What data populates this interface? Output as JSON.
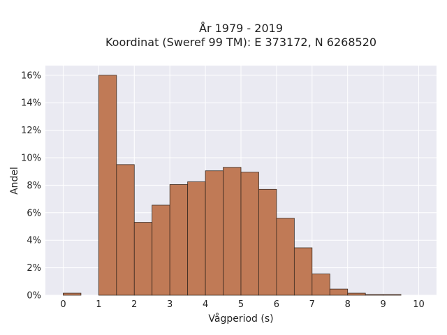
{
  "chart_data": {
    "type": "bar",
    "title": "År 1979 - 2019",
    "subtitle": "Koordinat (Sweref 99 TM): E 373172, N 6268520",
    "xlabel": "Vågperiod (s)",
    "ylabel": "Andel",
    "xlim": [
      -0.5,
      10.5
    ],
    "ylim": [
      0,
      16.7
    ],
    "x_ticks": [
      0,
      1,
      2,
      3,
      4,
      5,
      6,
      7,
      8,
      9,
      10
    ],
    "y_ticks": [
      0,
      2,
      4,
      6,
      8,
      10,
      12,
      14,
      16
    ],
    "y_tick_labels": [
      "0%",
      "2%",
      "4%",
      "6%",
      "8%",
      "10%",
      "12%",
      "14%",
      "16%"
    ],
    "bin_width": 0.5,
    "bin_starts": [
      0,
      0.5,
      1,
      1.5,
      2,
      2.5,
      3,
      3.5,
      4,
      4.5,
      5,
      5.5,
      6,
      6.5,
      7,
      7.5,
      8,
      8.5,
      9,
      9.5
    ],
    "values": [
      0.15,
      0,
      16.0,
      9.5,
      5.3,
      6.55,
      8.05,
      8.25,
      9.05,
      9.3,
      8.95,
      7.7,
      5.6,
      3.45,
      1.55,
      0.45,
      0.15,
      0.05,
      0.05,
      0
    ],
    "bar_color": "#c07a56",
    "bar_edge": "#3a2a20",
    "background": "#eaeaf2",
    "grid": true
  }
}
